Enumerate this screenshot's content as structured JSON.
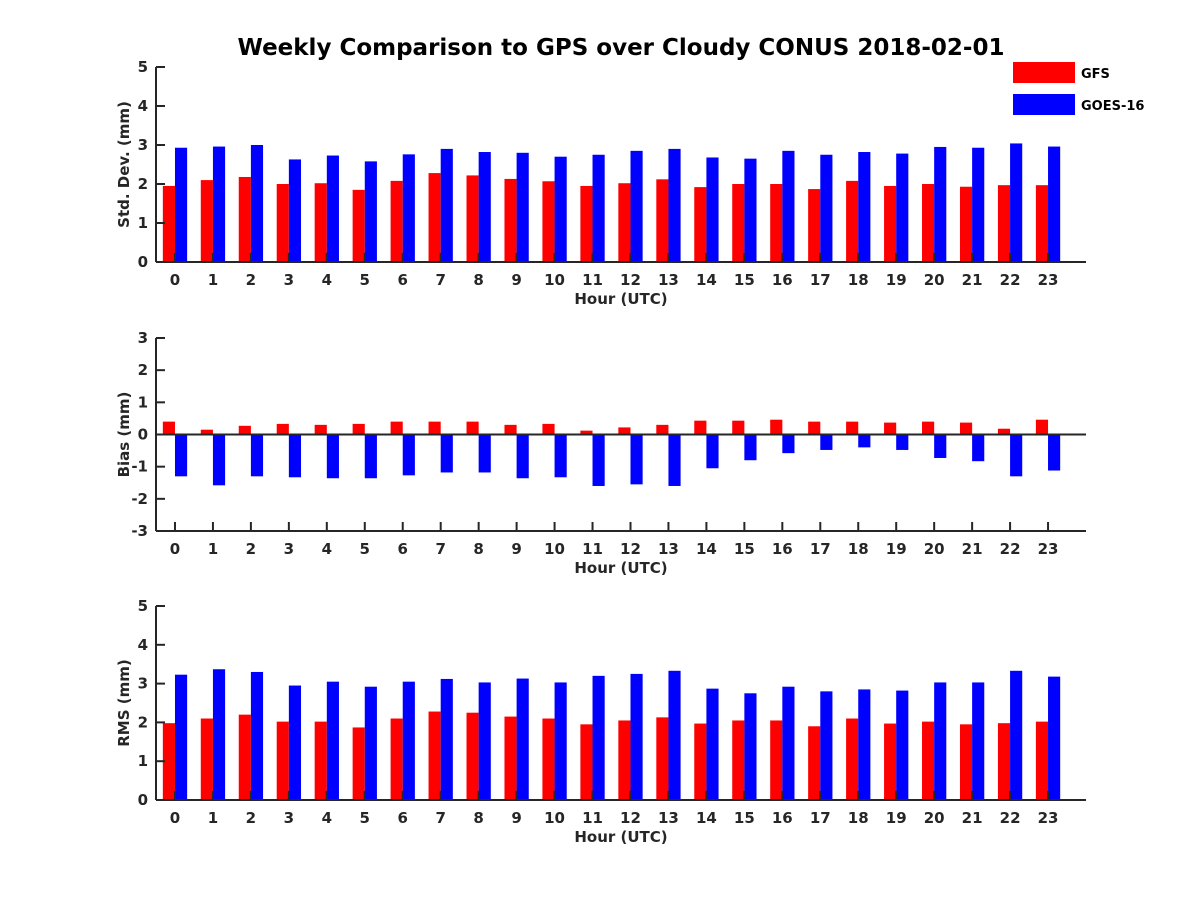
{
  "title": "Weekly Comparison to GPS over Cloudy CONUS 2018-02-01",
  "legend": {
    "placement": "top-right",
    "entries": [
      {
        "name": "GFS",
        "color": "#ff0000"
      },
      {
        "name": "GOES-16",
        "color": "#0000ff"
      }
    ]
  },
  "chart_data": [
    {
      "type": "bar",
      "xlabel": "Hour (UTC)",
      "ylabel": "Std. Dev. (mm)",
      "ylim": [
        0,
        5
      ],
      "yticks": [
        0,
        1,
        2,
        3,
        4,
        5
      ],
      "categories": [
        "0",
        "1",
        "2",
        "3",
        "4",
        "5",
        "6",
        "7",
        "8",
        "9",
        "10",
        "11",
        "12",
        "13",
        "14",
        "15",
        "16",
        "17",
        "18",
        "19",
        "20",
        "21",
        "22",
        "23"
      ],
      "series": [
        {
          "name": "GFS",
          "color": "#ff0000",
          "values": [
            1.95,
            2.1,
            2.18,
            2.0,
            2.02,
            1.85,
            2.08,
            2.28,
            2.22,
            2.13,
            2.07,
            1.95,
            2.02,
            2.12,
            1.92,
            2.0,
            2.0,
            1.87,
            2.08,
            1.95,
            2.0,
            1.93,
            1.97,
            1.97
          ]
        },
        {
          "name": "GOES-16",
          "color": "#0000ff",
          "values": [
            2.93,
            2.96,
            3.0,
            2.63,
            2.73,
            2.58,
            2.76,
            2.9,
            2.82,
            2.8,
            2.7,
            2.75,
            2.85,
            2.9,
            2.68,
            2.65,
            2.85,
            2.75,
            2.82,
            2.78,
            2.95,
            2.93,
            3.04,
            2.96
          ]
        }
      ]
    },
    {
      "type": "bar",
      "xlabel": "Hour (UTC)",
      "ylabel": "Bias (mm)",
      "ylim": [
        -3,
        3
      ],
      "yticks": [
        -3,
        -2,
        -1,
        0,
        1,
        2,
        3
      ],
      "categories": [
        "0",
        "1",
        "2",
        "3",
        "4",
        "5",
        "6",
        "7",
        "8",
        "9",
        "10",
        "11",
        "12",
        "13",
        "14",
        "15",
        "16",
        "17",
        "18",
        "19",
        "20",
        "21",
        "22",
        "23"
      ],
      "series": [
        {
          "name": "GFS",
          "color": "#ff0000",
          "values": [
            0.4,
            0.15,
            0.27,
            0.33,
            0.3,
            0.33,
            0.4,
            0.4,
            0.4,
            0.3,
            0.33,
            0.12,
            0.22,
            0.3,
            0.43,
            0.43,
            0.46,
            0.4,
            0.4,
            0.37,
            0.4,
            0.37,
            0.18,
            0.46
          ]
        },
        {
          "name": "GOES-16",
          "color": "#0000ff",
          "values": [
            -1.3,
            -1.58,
            -1.3,
            -1.33,
            -1.36,
            -1.36,
            -1.27,
            -1.18,
            -1.18,
            -1.36,
            -1.33,
            -1.6,
            -1.55,
            -1.6,
            -1.05,
            -0.8,
            -0.58,
            -0.48,
            -0.4,
            -0.48,
            -0.73,
            -0.83,
            -1.3,
            -1.12
          ]
        }
      ]
    },
    {
      "type": "bar",
      "xlabel": "Hour (UTC)",
      "ylabel": "RMS (mm)",
      "ylim": [
        0,
        5
      ],
      "yticks": [
        0,
        1,
        2,
        3,
        4,
        5
      ],
      "categories": [
        "0",
        "1",
        "2",
        "3",
        "4",
        "5",
        "6",
        "7",
        "8",
        "9",
        "10",
        "11",
        "12",
        "13",
        "14",
        "15",
        "16",
        "17",
        "18",
        "19",
        "20",
        "21",
        "22",
        "23"
      ],
      "series": [
        {
          "name": "GFS",
          "color": "#ff0000",
          "values": [
            1.98,
            2.1,
            2.2,
            2.02,
            2.02,
            1.87,
            2.1,
            2.28,
            2.25,
            2.15,
            2.1,
            1.95,
            2.05,
            2.13,
            1.97,
            2.05,
            2.05,
            1.9,
            2.1,
            1.97,
            2.02,
            1.95,
            1.98,
            2.02
          ]
        },
        {
          "name": "GOES-16",
          "color": "#0000ff",
          "values": [
            3.23,
            3.37,
            3.3,
            2.95,
            3.05,
            2.92,
            3.05,
            3.12,
            3.03,
            3.13,
            3.03,
            3.2,
            3.25,
            3.33,
            2.87,
            2.75,
            2.92,
            2.8,
            2.85,
            2.82,
            3.03,
            3.03,
            3.33,
            3.18
          ]
        }
      ]
    }
  ]
}
